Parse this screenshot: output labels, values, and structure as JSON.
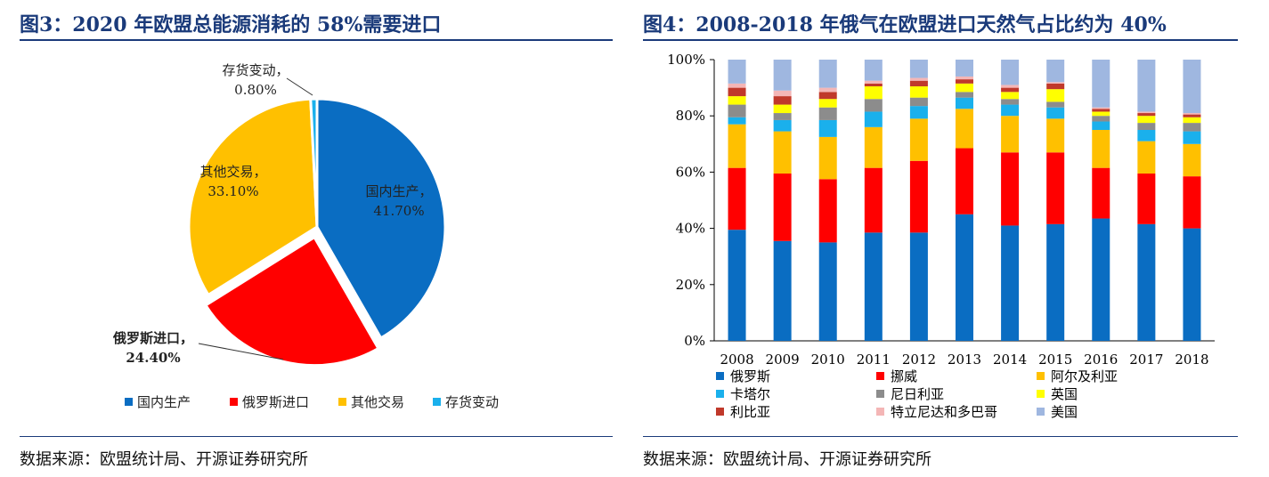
{
  "left": {
    "title": "图3：2020 年欧盟总能源消耗的 58%需要进口",
    "source": "数据来源：欧盟统计局、开源证券研究所",
    "chart_data": {
      "type": "pie",
      "title": "2020 年欧盟总能源消耗的 58%需要进口",
      "slices": [
        {
          "name": "国内生产",
          "value": 41.7,
          "label": "41.70%",
          "color": "#0a6dc2"
        },
        {
          "name": "俄罗斯进口",
          "value": 24.4,
          "label": "24.40%",
          "color": "#ff0000",
          "exploded": true
        },
        {
          "name": "其他交易",
          "value": 33.1,
          "label": "33.10%",
          "color": "#ffc000"
        },
        {
          "name": "存货变动",
          "value": 0.8,
          "label": "0.80%",
          "color": "#1ab0ec"
        }
      ],
      "legend": [
        "国内生产",
        "俄罗斯进口",
        "其他交易",
        "存货变动"
      ],
      "legend_position": "bottom"
    }
  },
  "right": {
    "title": "图4：2008-2018 年俄气在欧盟进口天然气占比约为 40%",
    "source": "数据来源：欧盟统计局、开源证券研究所",
    "chart_data": {
      "type": "bar",
      "stacked": true,
      "title": "2008-2018 年俄气在欧盟进口天然气占比约为 40%",
      "categories": [
        "2008",
        "2009",
        "2010",
        "2011",
        "2012",
        "2013",
        "2014",
        "2015",
        "2016",
        "2017",
        "2018"
      ],
      "ylim": [
        0,
        100
      ],
      "yticks": [
        "0%",
        "20%",
        "40%",
        "60%",
        "80%",
        "100%"
      ],
      "xlabel": "",
      "ylabel": "",
      "series": [
        {
          "name": "俄罗斯",
          "color": "#0a6dc2",
          "values": [
            39.5,
            35.5,
            35,
            38.5,
            38.5,
            45,
            41,
            41.5,
            43.5,
            41.5,
            40
          ]
        },
        {
          "name": "挪威",
          "color": "#ff0000",
          "values": [
            22,
            24,
            22.5,
            23,
            25.5,
            23.5,
            26,
            25.5,
            18,
            18,
            18.5
          ]
        },
        {
          "name": "阿尔及利亚",
          "color": "#ffc000",
          "values": [
            15.5,
            15,
            15,
            14.5,
            15,
            14,
            13,
            12,
            13.5,
            11.5,
            11.5
          ]
        },
        {
          "name": "卡塔尔",
          "color": "#1ab0ec",
          "values": [
            2.5,
            4,
            6,
            5.5,
            4.5,
            4,
            4,
            4,
            3,
            4,
            4.5
          ]
        },
        {
          "name": "尼日利亚",
          "color": "#8c8c8c",
          "values": [
            4.5,
            2.5,
            4.5,
            4.5,
            3,
            2,
            2,
            2,
            2,
            2.5,
            3
          ]
        },
        {
          "name": "英国",
          "color": "#ffff00",
          "values": [
            3,
            3,
            3,
            4.5,
            4,
            3,
            2.5,
            4.5,
            1.5,
            2.5,
            2
          ]
        },
        {
          "name": "利比亚",
          "color": "#c0392b",
          "values": [
            3,
            3,
            2.5,
            1,
            2,
            1.5,
            1.5,
            2,
            1,
            1,
            1
          ]
        },
        {
          "name": "特立尼达和多巴哥",
          "color": "#f4b6b6",
          "values": [
            1.5,
            2,
            1.5,
            1,
            1,
            1,
            1,
            0.5,
            0.5,
            0.5,
            0.5
          ]
        },
        {
          "name": "美国",
          "color": "#9fb7e0",
          "values": [
            8.5,
            11,
            10,
            7.5,
            6.5,
            6,
            9,
            8,
            17,
            18.5,
            19
          ]
        }
      ],
      "legend_position": "bottom"
    }
  }
}
